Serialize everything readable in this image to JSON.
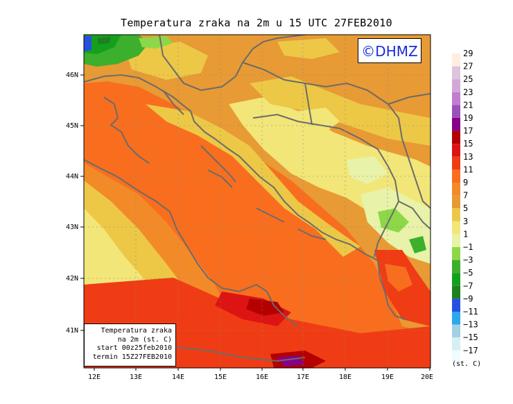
{
  "title": "Temperatura zraka na 2m u 15 UTC 27FEB2010",
  "copyright": "©DHMZ",
  "info_box": {
    "line1": "Temperatura zraka",
    "line2": "na 2m (st. C)",
    "line3": "start 00z25feb2010",
    "line4": "termin 15Z27FEB2010"
  },
  "x_ticks": [
    "12E",
    "13E",
    "14E",
    "15E",
    "16E",
    "17E",
    "18E",
    "19E",
    "20E"
  ],
  "y_ticks": [
    "46N",
    "45N",
    "44N",
    "43N",
    "42N",
    "41N"
  ],
  "legend": {
    "unit": "(st. C)",
    "labels": [
      "29",
      "27",
      "25",
      "23",
      "21",
      "19",
      "17",
      "15",
      "13",
      "11",
      "9",
      "7",
      "5",
      "3",
      "1",
      "−1",
      "−3",
      "−5",
      "−7",
      "−9",
      "−11",
      "−13",
      "−15",
      "−17"
    ],
    "colors": [
      "#fdeee0",
      "#dcc4de",
      "#d3a8d6",
      "#c07ed0",
      "#9a52b8",
      "#860088",
      "#b40000",
      "#dc1414",
      "#f03c14",
      "#f86e1e",
      "#f38a28",
      "#e89a34",
      "#ecc846",
      "#f2e678",
      "#e8f2a8",
      "#8cd848",
      "#3cb02c",
      "#14a01c",
      "#1e8020",
      "#2850e0",
      "#2ca8ec",
      "#a4d0e2",
      "#d4f0f4",
      "#f0fcff"
    ]
  }
}
